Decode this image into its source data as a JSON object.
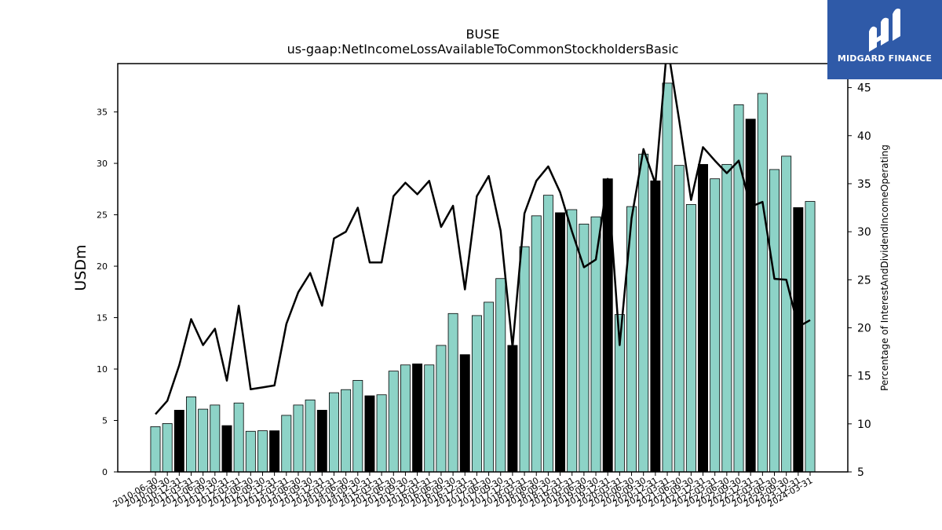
{
  "logo": {
    "text": "MIDGARD FINANCE",
    "background": "#2f5aa8"
  },
  "chart_data": {
    "type": "bar",
    "title": "BUSE",
    "subtitle": "us-gaap:NetIncomeLossAvailableToCommonStockholdersBasic",
    "ylabel": "USDm",
    "ylabel_right": "Percentage of InterestAndDividendIncomeOperating",
    "ylim": [
      0,
      39.7
    ],
    "ylim_right": [
      5,
      47.5
    ],
    "yticks": [
      0,
      5,
      10,
      15,
      20,
      25,
      30,
      35
    ],
    "yticks_right": [
      5,
      10,
      15,
      20,
      25,
      30,
      35,
      40,
      45
    ],
    "bar_color": "#8dd3c7",
    "highlight_color": "#000000",
    "line_color": "#000000",
    "categories": [
      "2010-06-30",
      "2010-09-30",
      "2010-12-31",
      "2011-03-31",
      "2011-06-30",
      "2011-09-30",
      "2011-12-31",
      "2012-03-31",
      "2012-06-30",
      "2012-09-30",
      "2012-12-31",
      "2013-03-31",
      "2013-06-30",
      "2013-09-30",
      "2013-12-31",
      "2014-03-31",
      "2014-06-30",
      "2014-09-30",
      "2014-12-31",
      "2015-03-31",
      "2015-06-30",
      "2015-09-30",
      "2015-12-31",
      "2016-03-31",
      "2016-06-30",
      "2016-09-30",
      "2016-12-31",
      "2017-03-31",
      "2017-06-30",
      "2017-09-30",
      "2017-12-31",
      "2018-03-31",
      "2018-06-30",
      "2018-09-30",
      "2018-12-31",
      "2019-03-31",
      "2019-06-30",
      "2019-09-30",
      "2019-12-31",
      "2020-03-31",
      "2020-06-30",
      "2020-09-30",
      "2020-12-31",
      "2021-03-31",
      "2021-06-30",
      "2021-09-30",
      "2021-12-31",
      "2022-03-31",
      "2022-06-30",
      "2022-09-30",
      "2022-12-31",
      "2023-03-31",
      "2023-06-30",
      "2023-09-30",
      "2023-12-31",
      "2024-03-31"
    ],
    "series": [
      {
        "values": [
          4.4,
          4.7,
          6.0,
          7.3,
          6.1,
          6.5,
          4.5,
          6.7,
          3.95,
          4.0,
          4.0,
          5.5,
          6.5,
          7.0,
          6.0,
          7.7,
          8.0,
          8.9,
          7.4,
          7.5,
          9.8,
          10.4,
          10.5,
          10.4,
          12.3,
          15.4,
          11.4,
          15.2,
          16.5,
          18.8,
          12.3,
          21.9,
          24.9,
          26.9,
          25.2,
          25.5,
          24.1,
          24.8,
          28.5,
          15.3,
          25.8,
          30.9,
          28.3,
          37.8,
          29.8,
          26.0,
          29.9,
          28.5,
          29.9,
          35.7,
          34.3,
          36.8,
          29.4,
          30.7,
          25.7,
          26.3
        ],
        "highlight": [
          false,
          false,
          true,
          false,
          false,
          false,
          true,
          false,
          false,
          false,
          true,
          false,
          false,
          false,
          true,
          false,
          false,
          false,
          true,
          false,
          false,
          false,
          true,
          false,
          false,
          false,
          true,
          false,
          false,
          false,
          true,
          false,
          false,
          false,
          true,
          false,
          false,
          false,
          true,
          false,
          false,
          false,
          true,
          false,
          false,
          false,
          true,
          false,
          false,
          false,
          true,
          false,
          false,
          false,
          true,
          false
        ]
      },
      {
        "axis": "right",
        "type": "line",
        "values": [
          11.0,
          12.4,
          16.1,
          20.9,
          18.2,
          19.9,
          14.5,
          22.3,
          13.6,
          13.8,
          14.0,
          20.4,
          23.7,
          25.7,
          22.3,
          29.3,
          30.0,
          32.5,
          26.8,
          26.8,
          33.7,
          35.1,
          33.9,
          35.3,
          30.5,
          32.7,
          24.0,
          33.7,
          35.8,
          30.1,
          18.0,
          31.9,
          35.3,
          36.8,
          34.1,
          30.0,
          26.3,
          27.1,
          35.5,
          18.2,
          31.4,
          38.6,
          35.0,
          49.5,
          41.6,
          33.3,
          38.8,
          37.4,
          36.1,
          37.4,
          32.6,
          33.1,
          25.1,
          25.0,
          20.1,
          20.8
        ]
      }
    ]
  }
}
